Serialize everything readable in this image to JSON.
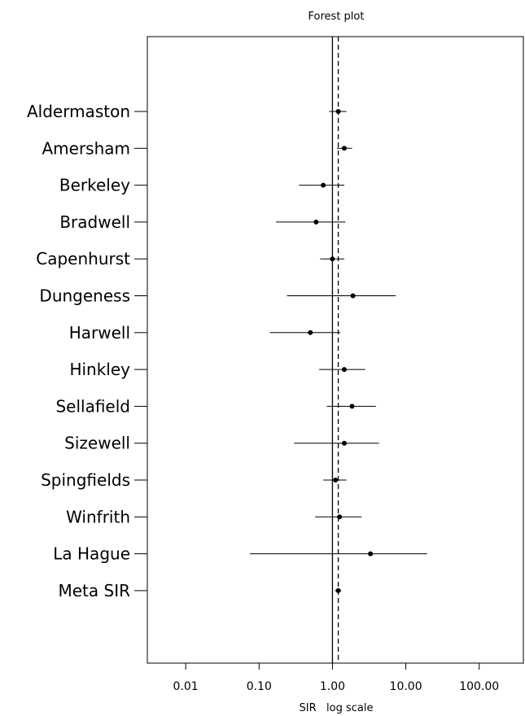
{
  "chart_data": {
    "type": "scatter",
    "title": "Forest plot",
    "xlabel": "SIR   log scale",
    "x_scale": "log10",
    "xlim": [
      0.003,
      400
    ],
    "xticks": [
      0.01,
      0.1,
      1,
      10,
      100
    ],
    "xtick_labels": [
      "0.01",
      "0.10",
      "1.00",
      "10.00",
      "100.00"
    ],
    "reference_lines": [
      {
        "x": 1.0,
        "style": "solid"
      },
      {
        "x": 1.2,
        "style": "dashed"
      }
    ],
    "grid": false,
    "studies": [
      {
        "label": "Aldermaston",
        "sir": 1.2,
        "lower": 0.9,
        "upper": 1.55
      },
      {
        "label": "Amersham",
        "sir": 1.45,
        "lower": 1.15,
        "upper": 1.85
      },
      {
        "label": "Berkeley",
        "sir": 0.75,
        "lower": 0.35,
        "upper": 1.45
      },
      {
        "label": "Bradwell",
        "sir": 0.6,
        "lower": 0.17,
        "upper": 1.5
      },
      {
        "label": "Capenhurst",
        "sir": 1.0,
        "lower": 0.68,
        "upper": 1.45
      },
      {
        "label": "Dungeness",
        "sir": 1.9,
        "lower": 0.24,
        "upper": 7.3
      },
      {
        "label": "Harwell",
        "sir": 0.5,
        "lower": 0.14,
        "upper": 1.28
      },
      {
        "label": "Hinkley",
        "sir": 1.45,
        "lower": 0.66,
        "upper": 2.8
      },
      {
        "label": "Sellafield",
        "sir": 1.85,
        "lower": 0.84,
        "upper": 3.9
      },
      {
        "label": "Sizewell",
        "sir": 1.45,
        "lower": 0.3,
        "upper": 4.3
      },
      {
        "label": "Spingfields",
        "sir": 1.1,
        "lower": 0.75,
        "upper": 1.55
      },
      {
        "label": "Winfrith",
        "sir": 1.25,
        "lower": 0.58,
        "upper": 2.5
      },
      {
        "label": "La Hague",
        "sir": 3.3,
        "lower": 0.075,
        "upper": 19.5
      },
      {
        "label": "Meta SIR",
        "sir": 1.2,
        "lower": 1.08,
        "upper": 1.32
      }
    ]
  }
}
